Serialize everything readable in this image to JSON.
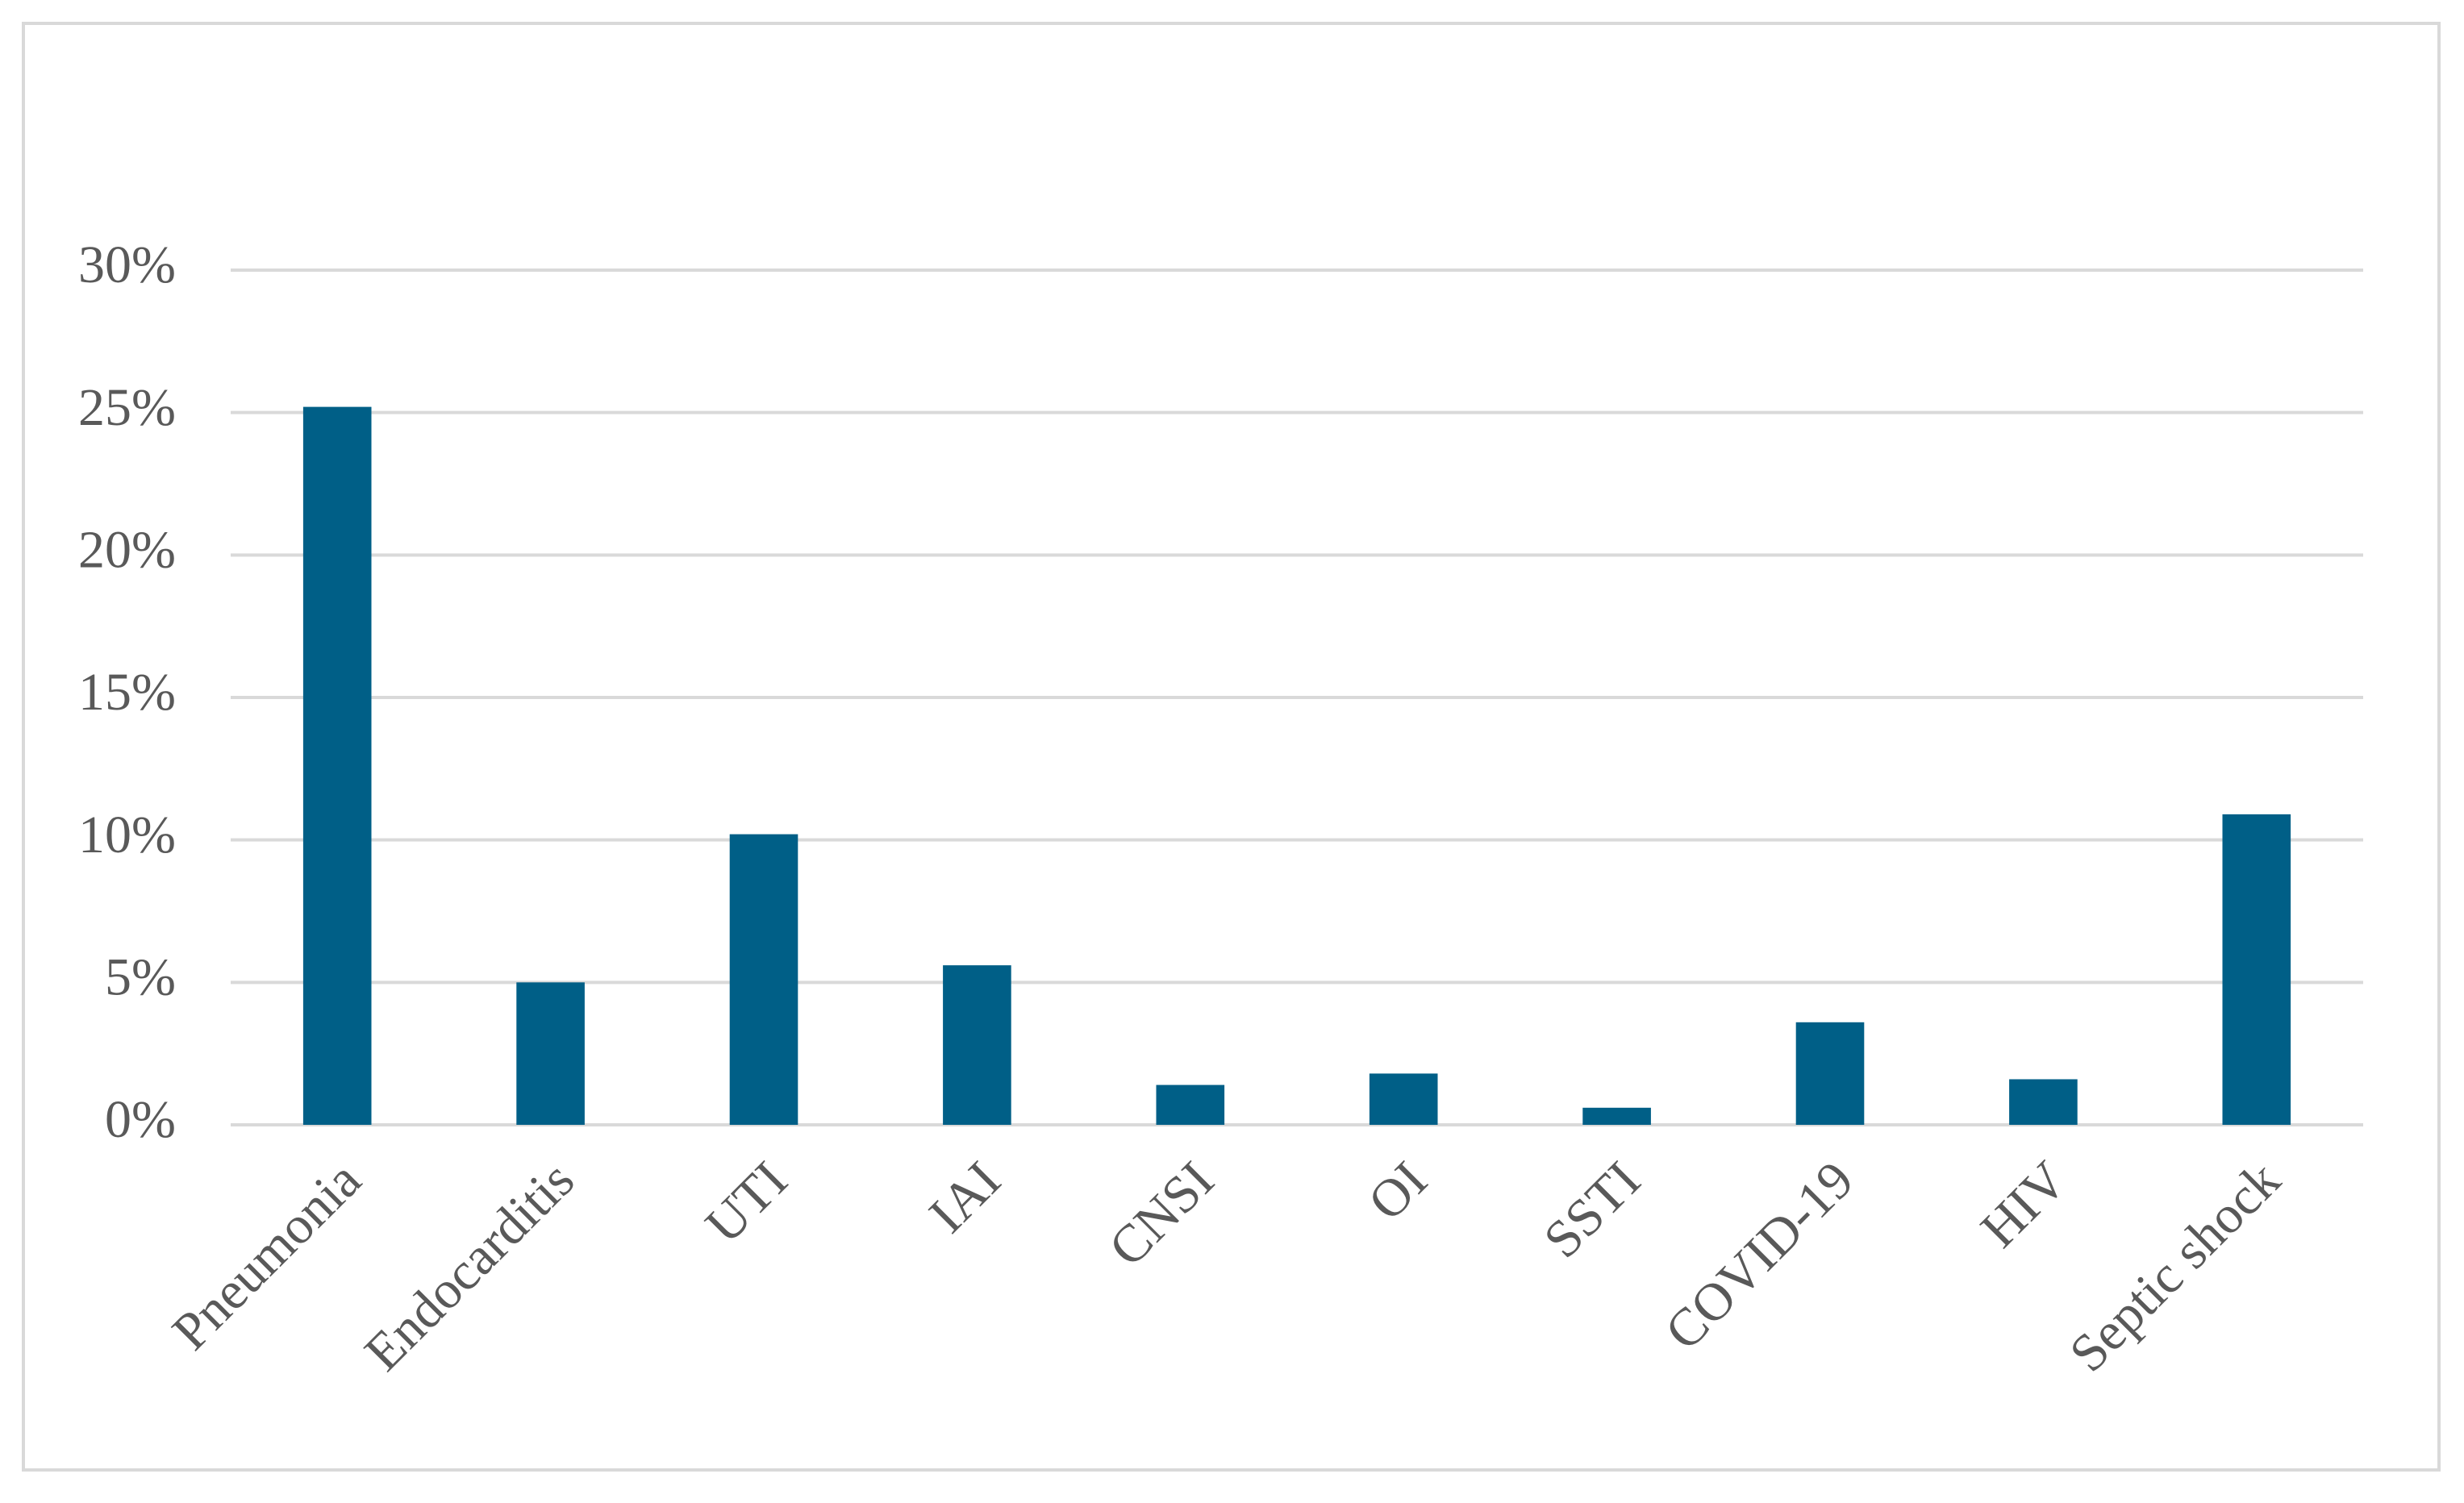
{
  "chart_data": {
    "type": "bar",
    "categories": [
      "Pneumonia",
      "Endocarditis",
      "UTI",
      "IAI",
      "CNSI",
      "OI",
      "SSTI",
      "COVID-19",
      "HIV",
      "Septic shock"
    ],
    "values": [
      25.2,
      5.0,
      10.2,
      5.6,
      1.4,
      1.8,
      0.6,
      3.6,
      1.6,
      10.9
    ],
    "color": "#005f87",
    "ylim": [
      0,
      30
    ],
    "yticks": [
      {
        "value": 0,
        "label": "0%"
      },
      {
        "value": 5,
        "label": "5%"
      },
      {
        "value": 10,
        "label": "10%"
      },
      {
        "value": 15,
        "label": "15%"
      },
      {
        "value": 20,
        "label": "20%"
      },
      {
        "value": 25,
        "label": "25%"
      },
      {
        "value": 30,
        "label": "30%"
      }
    ],
    "grid": true
  }
}
